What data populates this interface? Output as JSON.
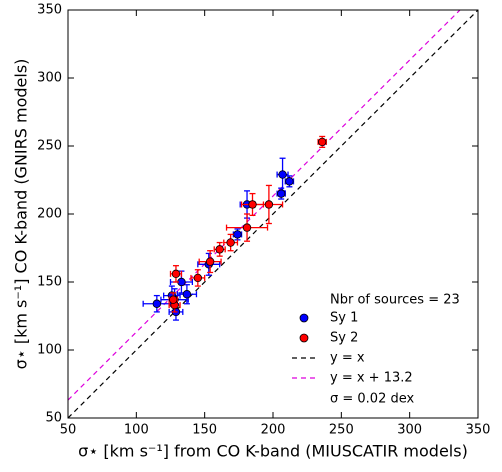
{
  "chart_data": {
    "type": "scatter",
    "xlabel": "σ⋆ [km s⁻¹] from CO K-band (MIUSCATIR models)",
    "ylabel": "σ⋆ [km s⁻¹]  CO K-band (GNIRS models)",
    "xlim": [
      50,
      350
    ],
    "ylim": [
      50,
      350
    ],
    "xticks": [
      50,
      100,
      150,
      200,
      250,
      300,
      350
    ],
    "yticks": [
      50,
      100,
      150,
      200,
      250,
      300,
      350
    ],
    "legend_text": "Nbr of sources = 23",
    "annotation": "σ = 0.02 dex",
    "series": [
      {
        "name": "Sy 1",
        "color": "#0000ff",
        "x": [
          115,
          133,
          137,
          128,
          129,
          153,
          174,
          181,
          206,
          207,
          212,
          126
        ],
        "values": [
          134,
          150,
          141,
          137,
          128,
          163,
          185,
          207,
          215,
          229,
          224,
          140
        ],
        "xerr": [
          10,
          8,
          7,
          10,
          5,
          8,
          3,
          5,
          3,
          4,
          3,
          6
        ],
        "yerr": [
          6,
          8,
          7,
          8,
          6,
          8,
          4,
          10,
          4,
          12,
          4,
          7
        ]
      },
      {
        "name": "Sy 2",
        "color": "#ff0000",
        "x": [
          236,
          129,
          128,
          145,
          161,
          169,
          181,
          185,
          197,
          154,
          127
        ],
        "values": [
          253,
          156,
          133,
          153,
          174,
          179,
          190,
          207,
          207,
          165,
          137
        ],
        "xerr": [
          3,
          4,
          4,
          5,
          4,
          5,
          15,
          8,
          10,
          8,
          3
        ],
        "yerr": [
          4,
          6,
          5,
          6,
          5,
          6,
          10,
          8,
          14,
          8,
          5
        ]
      }
    ],
    "lines": [
      {
        "name": "y = x",
        "color": "#000000",
        "offset": 0
      },
      {
        "name": "y = x + 13.2",
        "color": "#dd00dd",
        "offset": 13.2
      }
    ]
  }
}
